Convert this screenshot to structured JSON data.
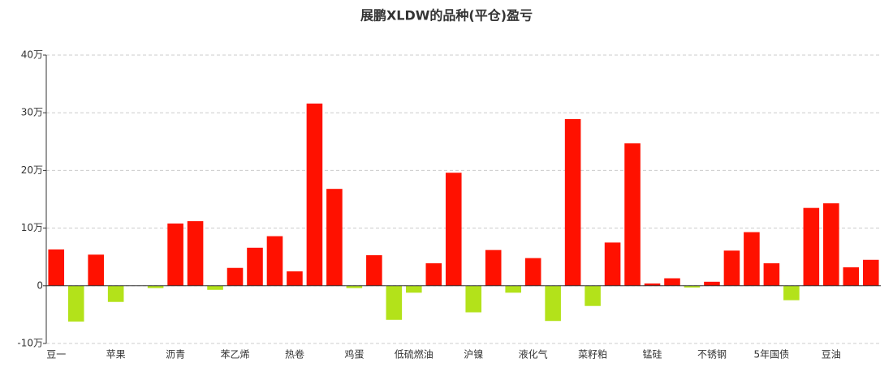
{
  "chart_data": {
    "type": "bar",
    "title": "展鹏XLDW的品种(平仓)盈亏",
    "categories": [
      "豆一",
      null,
      null,
      "苹果",
      null,
      null,
      "沥青",
      null,
      null,
      "苯乙烯",
      null,
      null,
      "热卷",
      null,
      null,
      "鸡蛋",
      null,
      null,
      "低硫燃油",
      null,
      null,
      "沪镍",
      null,
      null,
      "液化气",
      null,
      null,
      "菜籽粕",
      null,
      null,
      "锰硅",
      null,
      null,
      "不锈钢",
      null,
      null,
      "5年国债",
      null,
      null,
      "豆油",
      null,
      null
    ],
    "values": [
      6.3,
      -6.2,
      5.4,
      -2.8,
      0,
      -0.4,
      10.8,
      11.2,
      -0.7,
      3.1,
      6.6,
      8.6,
      2.5,
      31.6,
      16.8,
      -0.4,
      5.3,
      -5.9,
      -1.2,
      3.9,
      19.6,
      -4.6,
      6.2,
      -1.2,
      4.8,
      -6.1,
      28.9,
      -3.5,
      7.5,
      24.7,
      0.4,
      1.3,
      -0.3,
      0.7,
      6.1,
      9.3,
      3.9,
      -2.5,
      13.5,
      14.3,
      3.2,
      4.5
    ],
    "colors": {
      "positive": "#ff1100",
      "negative": "#b3e21a"
    },
    "ylim": [
      -10,
      40
    ],
    "yticks": [
      {
        "value": -10,
        "label": "-10万"
      },
      0,
      {
        "value": 10,
        "label": "10万"
      },
      {
        "value": 20,
        "label": "20万"
      },
      {
        "value": 30,
        "label": "30万"
      },
      {
        "value": 40,
        "label": "40万"
      }
    ],
    "grid": true
  }
}
